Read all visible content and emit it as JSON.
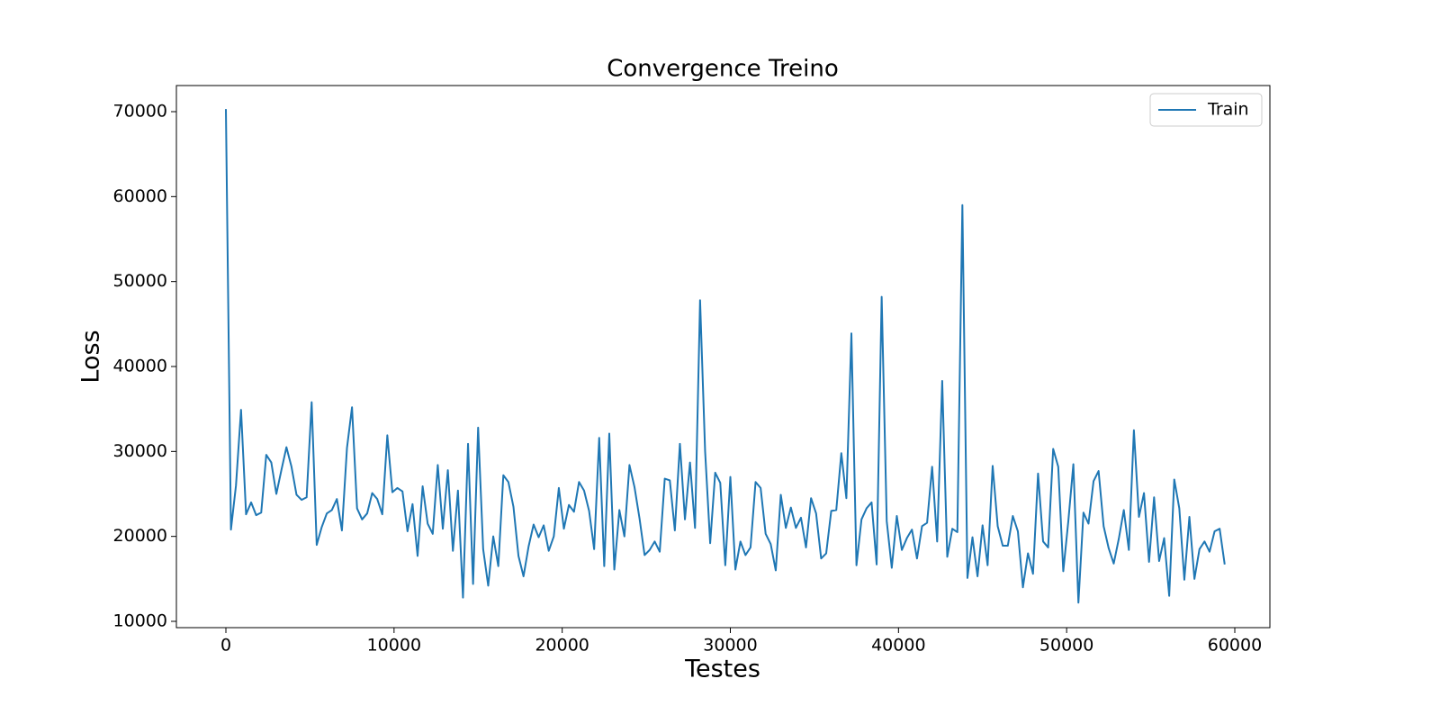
{
  "chart_data": {
    "type": "line",
    "title": "Convergence Treino",
    "xlabel": "Testes",
    "ylabel": "Loss",
    "x": [
      0,
      300,
      600,
      900,
      1200,
      1500,
      1800,
      2100,
      2400,
      2700,
      3000,
      3300,
      3600,
      3900,
      4200,
      4500,
      4800,
      5100,
      5400,
      5700,
      6000,
      6300,
      6600,
      6900,
      7200,
      7500,
      7800,
      8100,
      8400,
      8700,
      9000,
      9300,
      9600,
      9900,
      10200,
      10500,
      10800,
      11100,
      11400,
      11700,
      12000,
      12300,
      12600,
      12900,
      13200,
      13500,
      13800,
      14100,
      14400,
      14700,
      15000,
      15300,
      15600,
      15900,
      16200,
      16500,
      16800,
      17100,
      17400,
      17700,
      18000,
      18300,
      18600,
      18900,
      19200,
      19500,
      19800,
      20100,
      20400,
      20700,
      21000,
      21300,
      21600,
      21900,
      22200,
      22500,
      22800,
      23100,
      23400,
      23700,
      24000,
      24300,
      24600,
      24900,
      25200,
      25500,
      25800,
      26100,
      26400,
      26700,
      27000,
      27300,
      27600,
      27900,
      28200,
      28500,
      28800,
      29100,
      29400,
      29700,
      30000,
      30300,
      30600,
      30900,
      31200,
      31500,
      31800,
      32100,
      32400,
      32700,
      33000,
      33300,
      33600,
      33900,
      34200,
      34500,
      34800,
      35100,
      35400,
      35700,
      36000,
      36300,
      36600,
      36900,
      37200,
      37500,
      37800,
      38100,
      38400,
      38700,
      39000,
      39300,
      39600,
      39900,
      40200,
      40500,
      40800,
      41100,
      41400,
      41700,
      42000,
      42300,
      42600,
      42900,
      43200,
      43500,
      43800,
      44100,
      44400,
      44700,
      45000,
      45300,
      45600,
      45900,
      46200,
      46500,
      46800,
      47100,
      47400,
      47700,
      48000,
      48300,
      48600,
      48900,
      49200,
      49500,
      49800,
      50100,
      50400,
      50700,
      51000,
      51300,
      51600,
      51900,
      52200,
      52500,
      52800,
      53100,
      53400,
      53700,
      54000,
      54300,
      54600,
      54900,
      55200,
      55500,
      55800,
      56100,
      56400,
      56700,
      57000,
      57300,
      57600,
      57900,
      58200,
      58500,
      58800,
      59100,
      59400
    ],
    "series": [
      {
        "name": "Train",
        "color": "#1f77b4",
        "values": [
          70300,
          20800,
          26000,
          34900,
          22600,
          24000,
          22500,
          22800,
          29600,
          28700,
          25000,
          27800,
          30500,
          28200,
          24900,
          24300,
          24600,
          35800,
          19000,
          21100,
          22700,
          23100,
          24400,
          20700,
          30400,
          35200,
          23300,
          22000,
          22700,
          25100,
          24400,
          22600,
          31900,
          25200,
          25700,
          25300,
          20600,
          23800,
          17700,
          25900,
          21500,
          20300,
          28400,
          20900,
          27800,
          18300,
          25400,
          12800,
          30900,
          14400,
          32800,
          18500,
          14200,
          20000,
          16500,
          27200,
          26400,
          23500,
          17700,
          15300,
          18800,
          21400,
          19900,
          21300,
          18300,
          20000,
          25700,
          20900,
          23700,
          22900,
          26400,
          25400,
          23000,
          18500,
          31600,
          16500,
          32100,
          16100,
          23100,
          20000,
          28400,
          25800,
          22100,
          17800,
          18400,
          19400,
          18200,
          26800,
          26600,
          20700,
          30900,
          22000,
          28700,
          21000,
          47800,
          30000,
          19200,
          27500,
          26300,
          16600,
          27000,
          16100,
          19400,
          17800,
          18700,
          26400,
          25700,
          20300,
          19100,
          16000,
          24900,
          21000,
          23400,
          21000,
          22200,
          18700,
          24500,
          22700,
          17400,
          18000,
          23000,
          23100,
          29800,
          24500,
          43900,
          16600,
          22000,
          23300,
          24000,
          16700,
          48200,
          21800,
          16300,
          22400,
          18400,
          19800,
          20800,
          17400,
          21200,
          21600,
          28200,
          19400,
          38300,
          17600,
          20900,
          20500,
          59000,
          15100,
          19900,
          15300,
          21300,
          16600,
          28300,
          21200,
          18900,
          18900,
          22400,
          20600,
          14000,
          18000,
          15600,
          27400,
          19400,
          18700,
          30300,
          28200,
          15900,
          21800,
          28500,
          12200,
          22800,
          21500,
          26500,
          27700,
          21200,
          18600,
          16800,
          19700,
          23100,
          18400,
          32500,
          22300,
          25100,
          17000,
          24600,
          17100,
          19800,
          13000,
          26700,
          23300,
          14900,
          22300,
          15000,
          18500,
          19400,
          18200,
          20600,
          20900,
          16700
        ]
      }
    ],
    "xlim": [
      -2944,
      62088
    ],
    "ylim": [
      9258,
      73074
    ],
    "xticks": [
      0,
      10000,
      20000,
      30000,
      40000,
      50000,
      60000
    ],
    "yticks": [
      10000,
      20000,
      30000,
      40000,
      50000,
      60000,
      70000
    ],
    "legend": "upper right",
    "grid": false
  }
}
